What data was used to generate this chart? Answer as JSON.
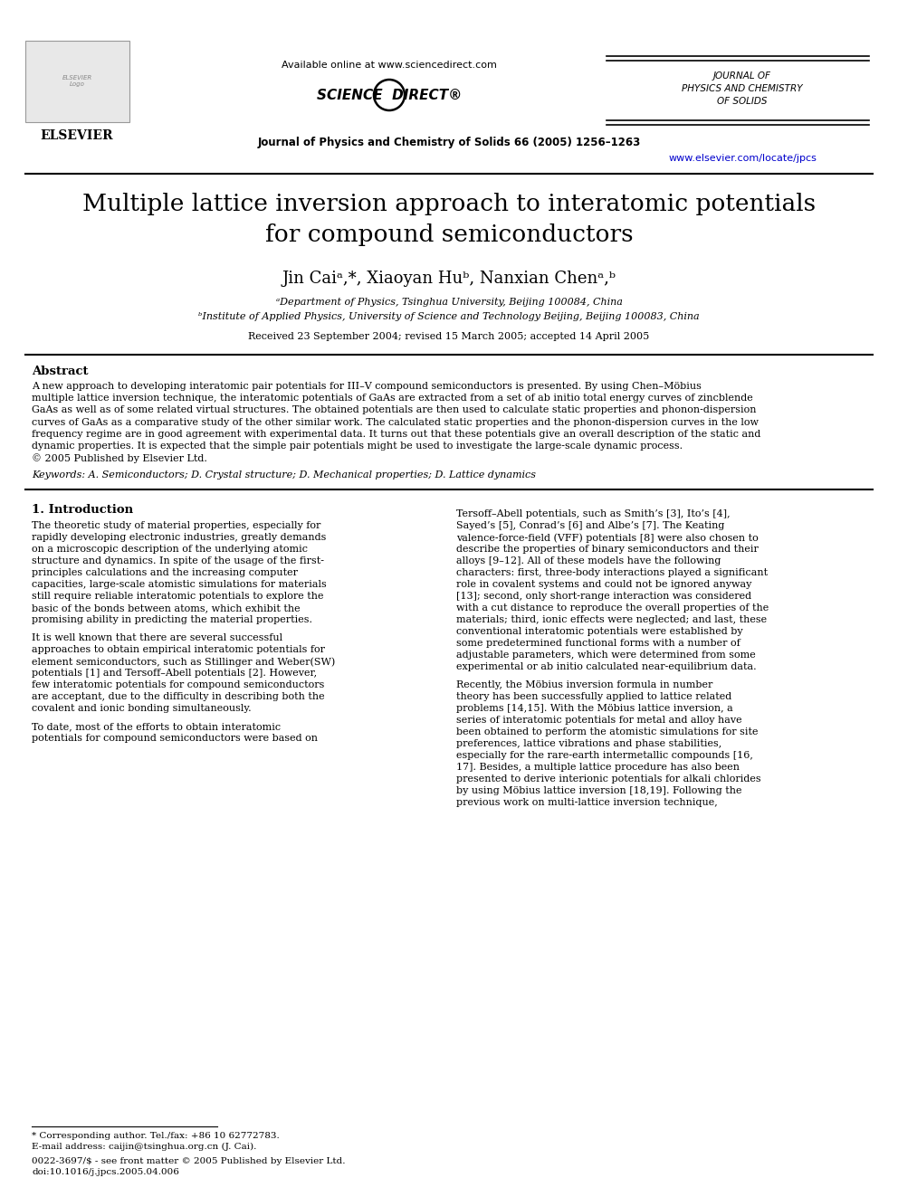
{
  "bg_color": "#ffffff",
  "header": {
    "available_online": "Available online at www.sciencedirect.com",
    "journal_name_top": "JOURNAL OF\nPHYSICS AND CHEMISTRY\nOF SOLIDS",
    "journal_ref": "Journal of Physics and Chemistry of Solids 66 (2005) 1256–1263",
    "url": "www.elsevier.com/locate/jpcs"
  },
  "title": "Multiple lattice inversion approach to interatomic potentials\nfor compound semiconductors",
  "authors": "Jin Caiᵃ,*, Xiaoyan Huᵇ, Nanxian Chenᵃ,ᵇ",
  "affil_a": "ᵃDepartment of Physics, Tsinghua University, Beijing 100084, China",
  "affil_b": "ᵇInstitute of Applied Physics, University of Science and Technology Beijing, Beijing 100083, China",
  "received": "Received 23 September 2004; revised 15 March 2005; accepted 14 April 2005",
  "abstract_title": "Abstract",
  "abstract_text": "A new approach to developing interatomic pair potentials for III–V compound semiconductors is presented. By using Chen–Möbius\nmultiple lattice inversion technique, the interatomic potentials of GaAs are extracted from a set of ab initio total energy curves of zincblende\nGaAs as well as of some related virtual structures. The obtained potentials are then used to calculate static properties and phonon-dispersion\ncurves of GaAs as a comparative study of the other similar work. The calculated static properties and the phonon-dispersion curves in the low\nfrequency regime are in good agreement with experimental data. It turns out that these potentials give an overall description of the static and\ndynamic properties. It is expected that the simple pair potentials might be used to investigate the large-scale dynamic process.\n© 2005 Published by Elsevier Ltd.",
  "keywords": "Keywords: A. Semiconductors; D. Crystal structure; D. Mechanical properties; D. Lattice dynamics",
  "section1_title": "1. Introduction",
  "col1_para1": "The theoretic study of material properties, especially for\nrapidly developing electronic industries, greatly demands\non a microscopic description of the underlying atomic\nstructure and dynamics. In spite of the usage of the first-\nprinciples calculations and the increasing computer\ncapacities, large-scale atomistic simulations for materials\nstill require reliable interatomic potentials to explore the\nbasic of the bonds between atoms, which exhibit the\npromising ability in predicting the material properties.",
  "col1_para2": "It is well known that there are several successful\napproaches to obtain empirical interatomic potentials for\nelement semiconductors, such as Stillinger and Weber(SW)\npotentials [1] and Tersoff–Abell potentials [2]. However,\nfew interatomic potentials for compound semiconductors\nare acceptant, due to the difficulty in describing both the\ncovalent and ionic bonding simultaneously.",
  "col1_para3": "To date, most of the efforts to obtain interatomic\npotentials for compound semiconductors were based on",
  "col2_para1": "Tersoff–Abell potentials, such as Smith’s [3], Ito’s [4],\nSayed’s [5], Conrad’s [6] and Albe’s [7]. The Keating\nvalence-force-field (VFF) potentials [8] were also chosen to\ndescribe the properties of binary semiconductors and their\nalloys [9–12]. All of these models have the following\ncharacters: first, three-body interactions played a significant\nrole in covalent systems and could not be ignored anyway\n[13]; second, only short-range interaction was considered\nwith a cut distance to reproduce the overall properties of the\nmaterials; third, ionic effects were neglected; and last, these\nconventional interatomic potentials were established by\nsome predetermined functional forms with a number of\nadjustable parameters, which were determined from some\nexperimental or ab initio calculated near-equilibrium data.",
  "col2_para2": "Recently, the Möbius inversion formula in number\ntheory has been successfully applied to lattice related\nproblems [14,15]. With the Möbius lattice inversion, a\nseries of interatomic potentials for metal and alloy have\nbeen obtained to perform the atomistic simulations for site\npreferences, lattice vibrations and phase stabilities,\nespecially for the rare-earth intermetallic compounds [16,\n17]. Besides, a multiple lattice procedure has also been\npresented to derive interionic potentials for alkali chlorides\nby using Möbius lattice inversion [18,19]. Following the\nprevious work on multi-lattice inversion technique,",
  "footnote1": "* Corresponding author. Tel./fax: +86 10 62772783.",
  "footnote2": "E-mail address: caijin@tsinghua.org.cn (J. Cai).",
  "footnote3": "0022-3697/$ - see front matter © 2005 Published by Elsevier Ltd.",
  "footnote4": "doi:10.1016/j.jpcs.2005.04.006"
}
